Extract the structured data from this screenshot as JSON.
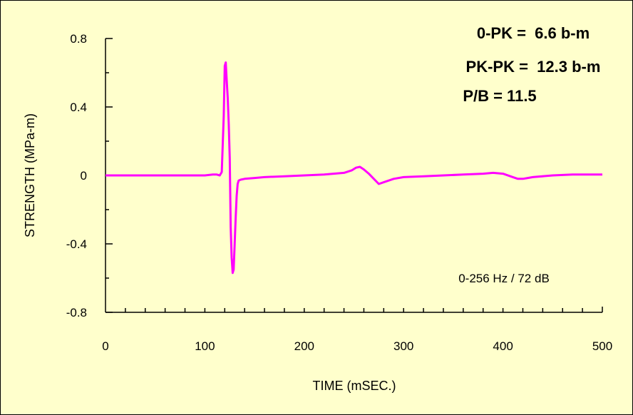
{
  "chart_data": {
    "type": "line",
    "title": "",
    "xlabel": "TIME (mSEC.)",
    "ylabel": "STRENGTH (MPa-m)",
    "xlim": [
      0,
      500
    ],
    "ylim": [
      -0.8,
      0.8
    ],
    "x_ticks": [
      0,
      100,
      200,
      300,
      400,
      500
    ],
    "x_tick_labels": [
      "0",
      "100",
      "200",
      "300",
      "400",
      "500"
    ],
    "y_ticks": [
      0.8,
      0.4,
      0,
      -0.4,
      -0.8
    ],
    "y_tick_labels": [
      "0.8",
      "0.4",
      "0",
      "-0.4",
      "-0.8"
    ],
    "grid": false,
    "line_color": "#ff00ff",
    "background_color": "#ffffcc",
    "annotations": [
      "0-PK =  6.6 b-m",
      "PK-PK =  12.3 b-m",
      "P/B = 11.5",
      "0-256 Hz / 72 dB"
    ],
    "series": [
      {
        "x": [
          0,
          20,
          40,
          60,
          80,
          100,
          108,
          112,
          115,
          117,
          119,
          120,
          121,
          122,
          123,
          124,
          125,
          126,
          127,
          128,
          129,
          130,
          131,
          132,
          133,
          134,
          136,
          140,
          150,
          160,
          180,
          200,
          220,
          240,
          248,
          252,
          256,
          260,
          265,
          270,
          275,
          280,
          290,
          300,
          320,
          340,
          360,
          380,
          390,
          400,
          410,
          415,
          420,
          425,
          430,
          450,
          470,
          490,
          500
        ],
        "y": [
          0,
          0,
          0,
          0,
          0,
          0,
          0.005,
          0.005,
          0,
          0.02,
          0.35,
          0.64,
          0.66,
          0.55,
          0.45,
          0.3,
          0.1,
          -0.3,
          -0.48,
          -0.57,
          -0.55,
          -0.4,
          -0.25,
          -0.12,
          -0.05,
          -0.03,
          -0.025,
          -0.02,
          -0.015,
          -0.01,
          -0.005,
          0,
          0.005,
          0.015,
          0.03,
          0.045,
          0.05,
          0.035,
          0.01,
          -0.02,
          -0.05,
          -0.04,
          -0.02,
          -0.01,
          -0.005,
          0,
          0.005,
          0.01,
          0.015,
          0.01,
          -0.01,
          -0.02,
          -0.02,
          -0.015,
          -0.01,
          0,
          0.005,
          0.005,
          0.005
        ]
      }
    ]
  }
}
